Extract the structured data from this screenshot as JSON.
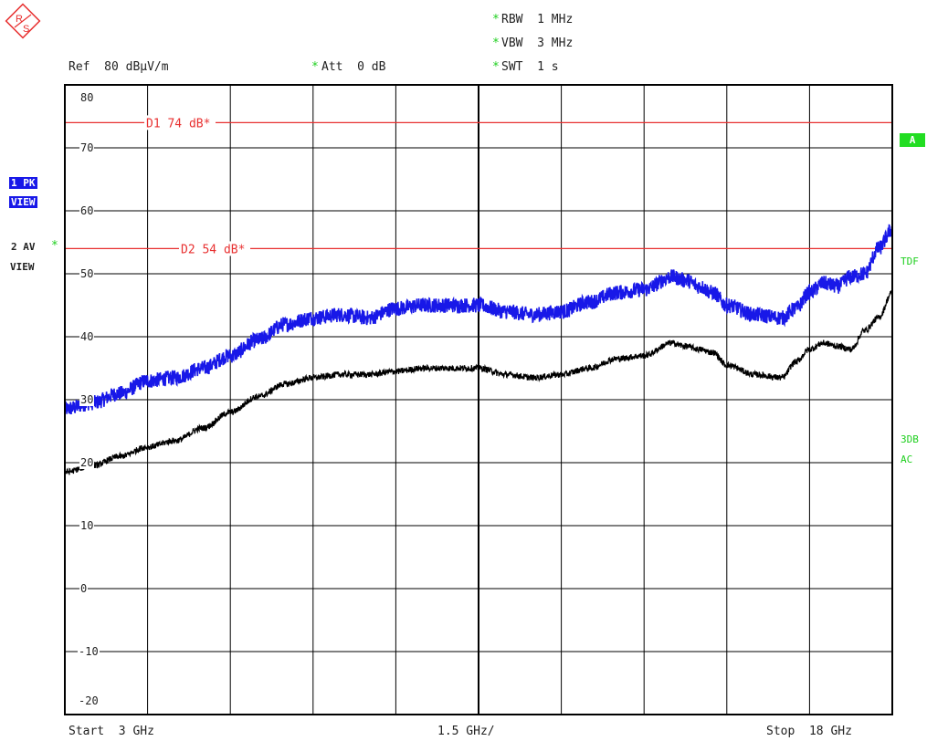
{
  "header": {
    "ref": "Ref  80 dBµV/m",
    "att": "Att  0 dB",
    "rbw": "RBW  1 MHz",
    "vbw": "VBW  3 MHz",
    "swt": "SWT  1 s"
  },
  "logo_icon": "rohde-schwarz-logo",
  "side_labels": {
    "trace1_line1": "1 PK",
    "trace1_line2": "VIEW",
    "trace2_line1": "2 AV",
    "trace2_line2": "VIEW",
    "a_badge": "A",
    "tdf": "TDF",
    "db3": "3DB",
    "ac": "AC"
  },
  "footer": {
    "start": "Start  3 GHz",
    "span": "1.5 GHz/",
    "stop": "Stop  18 GHz"
  },
  "colors": {
    "trace1": "#1818e8",
    "trace2": "#000000",
    "limit": "#e83030",
    "grid": "#000000",
    "annotation": "#1ecf1e"
  },
  "chart_data": {
    "type": "line",
    "xlabel": "",
    "ylabel": "",
    "x_unit": "GHz",
    "y_unit": "dBµV/m",
    "xlim": [
      3,
      18
    ],
    "ylim": [
      -20,
      80
    ],
    "x_divisions": 10,
    "y_divisions": 10,
    "y_tick_labels": [
      "80",
      "70",
      "60",
      "50",
      "40",
      "30",
      "20",
      "10",
      "0",
      "-10",
      "-20"
    ],
    "grid": true,
    "limit_lines": [
      {
        "name": "D1 74 dB*",
        "value": 74
      },
      {
        "name": "D2 54 dB*",
        "value": 54
      }
    ],
    "series": [
      {
        "name": "1 PK VIEW",
        "x": [
          3.0,
          3.5,
          4.0,
          4.5,
          5.0,
          5.5,
          6.0,
          6.5,
          7.0,
          7.5,
          8.0,
          8.5,
          9.0,
          9.5,
          10.0,
          10.5,
          11.0,
          11.5,
          12.0,
          12.5,
          13.0,
          13.5,
          14.0,
          14.25,
          14.5,
          14.75,
          15.0,
          15.5,
          16.0,
          16.25,
          16.5,
          16.75,
          17.0,
          17.25,
          17.5,
          17.75,
          18.0
        ],
        "values": [
          28.5,
          29.5,
          31.0,
          33.0,
          33.5,
          35.0,
          37.0,
          39.5,
          42.0,
          43.0,
          43.5,
          43.0,
          44.5,
          45.0,
          45.0,
          45.0,
          44.0,
          43.5,
          44.0,
          45.5,
          47.0,
          47.5,
          49.5,
          49.0,
          48.0,
          47.0,
          45.0,
          43.5,
          43.0,
          44.5,
          47.0,
          48.5,
          48.0,
          49.5,
          50.0,
          54.0,
          57.0
        ],
        "noise_amplitude": 1.2
      },
      {
        "name": "2 AV VIEW",
        "x": [
          3.0,
          3.5,
          4.0,
          4.5,
          5.0,
          5.5,
          6.0,
          6.5,
          7.0,
          7.5,
          8.0,
          8.5,
          9.0,
          9.5,
          10.0,
          10.5,
          11.0,
          11.5,
          12.0,
          12.5,
          13.0,
          13.5,
          14.0,
          14.25,
          14.5,
          14.75,
          15.0,
          15.5,
          16.0,
          16.25,
          16.5,
          16.75,
          17.0,
          17.25,
          17.5,
          17.75,
          18.0
        ],
        "values": [
          18.5,
          19.5,
          21.0,
          22.5,
          23.5,
          25.5,
          28.0,
          30.5,
          32.5,
          33.5,
          34.0,
          34.0,
          34.5,
          35.0,
          35.0,
          35.0,
          34.0,
          33.5,
          34.0,
          35.0,
          36.5,
          37.0,
          39.0,
          38.5,
          38.0,
          37.5,
          35.5,
          34.0,
          33.5,
          36.0,
          38.0,
          39.0,
          38.5,
          38.0,
          41.0,
          43.0,
          47.0
        ],
        "noise_amplitude": 0.5
      }
    ]
  }
}
